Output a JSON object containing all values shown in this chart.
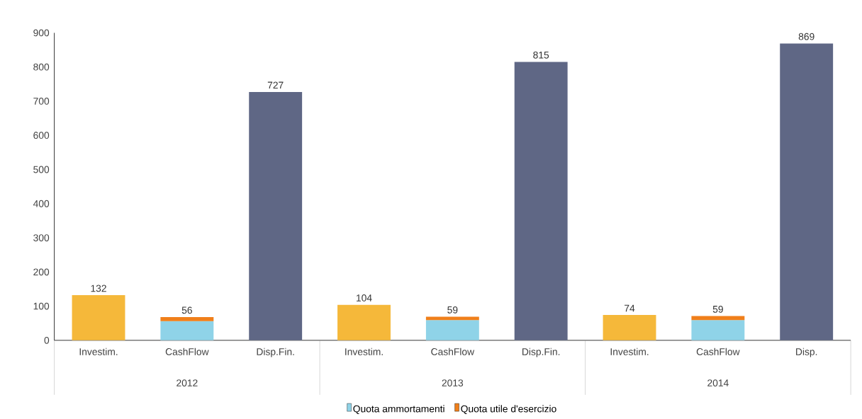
{
  "chart_data": {
    "type": "bar",
    "stacked": true,
    "categories": [
      "Investim.",
      "CashFlow",
      "Disp.Fin.",
      "Investim.",
      "CashFlow",
      "Disp.Fin.",
      "Investim.",
      "CashFlow",
      "Disp."
    ],
    "series": [
      {
        "color": "#f5b83a",
        "values": [
          132,
          null,
          null,
          104,
          null,
          null,
          74,
          null,
          null
        ],
        "value_labels": [
          "132",
          null,
          null,
          "104",
          null,
          null,
          "74",
          null,
          null
        ]
      },
      {
        "name": "Quota ammortamenti",
        "color": "#8fd3e8",
        "values": [
          null,
          56,
          null,
          null,
          59,
          null,
          null,
          59,
          null
        ],
        "value_labels": [
          null,
          "56",
          null,
          null,
          "59",
          null,
          null,
          "59",
          null
        ]
      },
      {
        "name": "Quota utile d'esercizio",
        "color": "#f07f1a",
        "values": [
          null,
          12,
          null,
          null,
          10,
          null,
          null,
          12,
          null
        ]
      },
      {
        "color": "#5f6785",
        "values": [
          null,
          null,
          727,
          null,
          null,
          815,
          null,
          null,
          869
        ],
        "value_labels": [
          null,
          null,
          "727",
          null,
          null,
          "815",
          null,
          null,
          "869"
        ]
      }
    ],
    "ylim": [
      0,
      900
    ],
    "yticks": [
      0,
      100,
      200,
      300,
      400,
      500,
      600,
      700,
      800,
      900
    ],
    "annotations": [
      "2012",
      "2013",
      "2014"
    ],
    "legend": "bottom",
    "grid": false
  }
}
